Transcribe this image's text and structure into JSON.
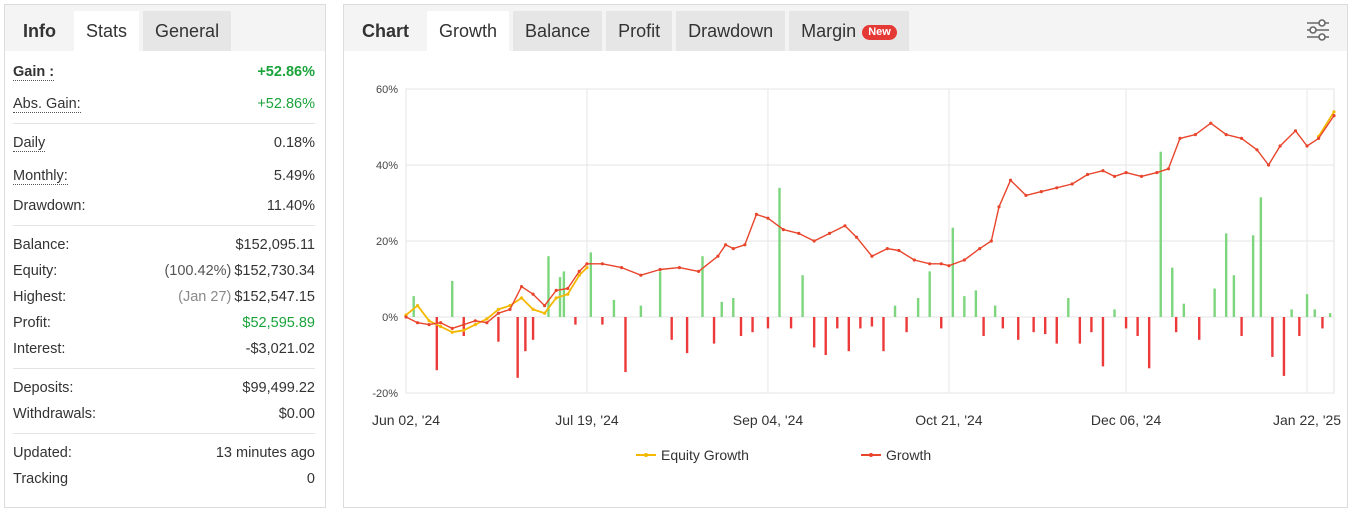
{
  "stats_panel": {
    "tabs": [
      {
        "label": "Info",
        "state": "header"
      },
      {
        "label": "Stats",
        "state": "active"
      },
      {
        "label": "General",
        "state": "inactive"
      }
    ],
    "rows": {
      "gain": {
        "label": "Gain :",
        "value": "+52.86%"
      },
      "abs_gain": {
        "label": "Abs. Gain:",
        "value": "+52.86%"
      },
      "daily": {
        "label": "Daily",
        "value": "0.18%"
      },
      "monthly": {
        "label": "Monthly:",
        "value": "5.49%"
      },
      "drawdown": {
        "label": "Drawdown:",
        "value": "11.40%"
      },
      "balance": {
        "label": "Balance:",
        "value": "$152,095.11"
      },
      "equity": {
        "label": "Equity:",
        "prefix": "(100.42%)",
        "value": "$152,730.34"
      },
      "highest": {
        "label": "Highest:",
        "prefix": "(Jan 27)",
        "value": "$152,547.15"
      },
      "profit": {
        "label": "Profit:",
        "value": "$52,595.89"
      },
      "interest": {
        "label": "Interest:",
        "value": "-$3,021.02"
      },
      "deposits": {
        "label": "Deposits:",
        "value": "$99,499.22"
      },
      "withdrawals": {
        "label": "Withdrawals:",
        "value": "$0.00"
      },
      "updated": {
        "label": "Updated:",
        "value": "13 minutes ago"
      },
      "tracking": {
        "label": "Tracking",
        "value": "0"
      }
    }
  },
  "chart_panel": {
    "tabs": [
      {
        "label": "Chart",
        "state": "header"
      },
      {
        "label": "Growth",
        "state": "active"
      },
      {
        "label": "Balance",
        "state": "inactive"
      },
      {
        "label": "Profit",
        "state": "inactive"
      },
      {
        "label": "Drawdown",
        "state": "inactive"
      },
      {
        "label": "Margin",
        "state": "inactive",
        "badge": "New"
      }
    ],
    "settings_icon": "sliders-icon"
  },
  "colors": {
    "growth": "#e8452c",
    "equity": "#f5b800",
    "bar_positive": "#7dd67d",
    "bar_negative": "#ec3a3a",
    "gain_green": "#1aa33b",
    "new_badge": "#e53935"
  },
  "chart_data": {
    "type": "line",
    "title": "",
    "xlabel": "",
    "ylabel": "",
    "ylim": [
      -20,
      60
    ],
    "y_ticks": [
      -20,
      0,
      20,
      40,
      60
    ],
    "y_tick_labels": [
      "-20%",
      "0%",
      "20%",
      "40%",
      "60%"
    ],
    "x_range": [
      "2024-06-02",
      "2025-01-29"
    ],
    "x_ticks": [
      "2024-06-02",
      "2024-07-19",
      "2024-09-04",
      "2024-10-21",
      "2024-12-06",
      "2025-01-22"
    ],
    "x_tick_labels": [
      "Jun 02, '24",
      "Jul 19, '24",
      "Sep 04, '24",
      "Oct 21, '24",
      "Dec 06, '24",
      "Jan 22, '25"
    ],
    "grid": true,
    "legend": {
      "position": "bottom",
      "entries": [
        "Equity Growth",
        "Growth"
      ]
    },
    "series": [
      {
        "name": "Growth",
        "color": "#e8452c",
        "x": [
          "2024-06-02",
          "2024-06-05",
          "2024-06-08",
          "2024-06-11",
          "2024-06-14",
          "2024-06-17",
          "2024-06-20",
          "2024-06-23",
          "2024-06-26",
          "2024-06-29",
          "2024-07-02",
          "2024-07-05",
          "2024-07-08",
          "2024-07-11",
          "2024-07-14",
          "2024-07-17",
          "2024-07-19",
          "2024-07-23",
          "2024-07-28",
          "2024-08-02",
          "2024-08-07",
          "2024-08-12",
          "2024-08-17",
          "2024-08-22",
          "2024-08-24",
          "2024-08-26",
          "2024-08-29",
          "2024-09-01",
          "2024-09-04",
          "2024-09-08",
          "2024-09-12",
          "2024-09-16",
          "2024-09-20",
          "2024-09-24",
          "2024-09-27",
          "2024-10-01",
          "2024-10-05",
          "2024-10-08",
          "2024-10-12",
          "2024-10-16",
          "2024-10-19",
          "2024-10-21",
          "2024-10-25",
          "2024-10-29",
          "2024-11-01",
          "2024-11-03",
          "2024-11-06",
          "2024-11-10",
          "2024-11-14",
          "2024-11-18",
          "2024-11-22",
          "2024-11-26",
          "2024-11-30",
          "2024-12-03",
          "2024-12-06",
          "2024-12-10",
          "2024-12-14",
          "2024-12-17",
          "2024-12-20",
          "2024-12-24",
          "2024-12-28",
          "2025-01-01",
          "2025-01-05",
          "2025-01-09",
          "2025-01-12",
          "2025-01-15",
          "2025-01-19",
          "2025-01-22",
          "2025-01-25",
          "2025-01-29"
        ],
        "values": [
          0.0,
          -1.5,
          -2.0,
          -1.5,
          -3.0,
          -2.0,
          -1.0,
          -1.5,
          1.0,
          2.0,
          8.0,
          6.0,
          3.0,
          7.0,
          7.5,
          12.0,
          14.0,
          14.0,
          13.0,
          11.0,
          12.5,
          13.0,
          12.0,
          16.0,
          19.0,
          18.0,
          19.0,
          27.0,
          26.0,
          23.0,
          22.0,
          20.0,
          22.0,
          24.0,
          21.0,
          16.0,
          18.0,
          17.5,
          15.0,
          14.0,
          14.0,
          13.5,
          15.0,
          18.0,
          20.0,
          29.0,
          36.0,
          32.0,
          33.0,
          34.0,
          35.0,
          37.5,
          38.5,
          37.0,
          38.0,
          37.0,
          38.0,
          39.0,
          47.0,
          48.0,
          51.0,
          48.0,
          47.0,
          44.0,
          40.0,
          45.0,
          49.0,
          45.0,
          47.0,
          53.0
        ]
      },
      {
        "name": "Equity Growth",
        "color": "#f5b800",
        "x": [
          "2024-06-02",
          "2024-06-05",
          "2024-06-08",
          "2024-06-11",
          "2024-06-14",
          "2024-06-17",
          "2024-06-20",
          "2024-06-23",
          "2024-06-26",
          "2024-06-29",
          "2024-07-02",
          "2024-07-05",
          "2024-07-08",
          "2024-07-11",
          "2024-07-14",
          "2024-07-17",
          "2024-07-19",
          "2025-01-25",
          "2025-01-29"
        ],
        "values": [
          0.5,
          3.0,
          -1.0,
          -2.5,
          -4.0,
          -3.5,
          -2.0,
          -0.5,
          2.0,
          3.0,
          5.0,
          2.0,
          1.0,
          5.0,
          6.0,
          11.0,
          13.0,
          47.5,
          54.0
        ]
      }
    ],
    "bars": {
      "x": [
        "2024-06-04",
        "2024-06-10",
        "2024-06-14",
        "2024-06-17",
        "2024-06-26",
        "2024-07-01",
        "2024-07-03",
        "2024-07-05",
        "2024-07-09",
        "2024-07-12",
        "2024-07-13",
        "2024-07-16",
        "2024-07-20",
        "2024-07-23",
        "2024-07-26",
        "2024-07-29",
        "2024-08-02",
        "2024-08-07",
        "2024-08-10",
        "2024-08-14",
        "2024-08-18",
        "2024-08-21",
        "2024-08-23",
        "2024-08-26",
        "2024-08-28",
        "2024-08-31",
        "2024-09-04",
        "2024-09-07",
        "2024-09-10",
        "2024-09-13",
        "2024-09-16",
        "2024-09-19",
        "2024-09-22",
        "2024-09-25",
        "2024-09-28",
        "2024-10-01",
        "2024-10-04",
        "2024-10-07",
        "2024-10-10",
        "2024-10-13",
        "2024-10-16",
        "2024-10-19",
        "2024-10-22",
        "2024-10-25",
        "2024-10-28",
        "2024-10-30",
        "2024-11-02",
        "2024-11-04",
        "2024-11-08",
        "2024-11-12",
        "2024-11-15",
        "2024-11-18",
        "2024-11-21",
        "2024-11-24",
        "2024-11-27",
        "2024-11-30",
        "2024-12-03",
        "2024-12-06",
        "2024-12-09",
        "2024-12-12",
        "2024-12-15",
        "2024-12-18",
        "2024-12-19",
        "2024-12-21",
        "2024-12-25",
        "2024-12-29",
        "2025-01-01",
        "2025-01-03",
        "2025-01-05",
        "2025-01-08",
        "2025-01-10",
        "2025-01-13",
        "2025-01-16",
        "2025-01-18",
        "2025-01-20",
        "2025-01-22",
        "2025-01-24",
        "2025-01-26",
        "2025-01-28"
      ],
      "values": [
        5.5,
        -14.0,
        9.5,
        -5.0,
        -6.5,
        -16.0,
        -9.0,
        -6.0,
        16.0,
        10.5,
        12.0,
        -2.0,
        17.0,
        -2.0,
        4.5,
        -14.5,
        3.0,
        12.0,
        -6.0,
        -9.5,
        16.0,
        -7.0,
        4.0,
        5.0,
        -5.0,
        -4.0,
        -3.0,
        34.0,
        -3.0,
        11.0,
        -8.0,
        -10.0,
        -3.0,
        -9.0,
        -3.0,
        -2.5,
        -9.0,
        3.0,
        -4.0,
        5.0,
        12.0,
        -3.0,
        23.5,
        5.5,
        7.0,
        -5.0,
        3.0,
        -3.0,
        -6.0,
        -4.0,
        -4.5,
        -7.0,
        5.0,
        -7.0,
        -4.0,
        -13.0,
        2.0,
        -3.0,
        -5.0,
        -13.5,
        43.5,
        13.0,
        -4.0,
        3.5,
        -6.0,
        7.5,
        22.0,
        11.0,
        -5.0,
        21.5,
        31.5,
        -10.5,
        -15.5,
        2.0,
        -5.0,
        6.0,
        2.0,
        -3.0,
        1.0
      ]
    }
  }
}
